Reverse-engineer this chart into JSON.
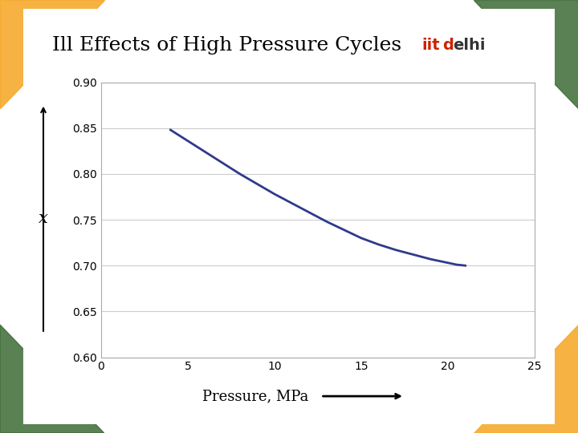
{
  "title": "Ill Effects of High Pressure Cycles",
  "xlabel": "Pressure, MPa",
  "ylabel": "x",
  "bg_color": "#ffffff",
  "line_color": "#2e3a8c",
  "line_width": 2.0,
  "xlim": [
    0,
    25
  ],
  "ylim": [
    0.6,
    0.9
  ],
  "xticks": [
    0,
    5,
    10,
    15,
    20,
    25
  ],
  "yticks": [
    0.6,
    0.65,
    0.7,
    0.75,
    0.8,
    0.85,
    0.9
  ],
  "curve_x": [
    4.0,
    5.0,
    6.0,
    7.0,
    8.0,
    9.0,
    10.0,
    11.0,
    12.0,
    13.0,
    14.0,
    15.0,
    16.0,
    17.0,
    18.0,
    19.0,
    20.5,
    21.0
  ],
  "curve_y": [
    0.848,
    0.836,
    0.824,
    0.812,
    0.8,
    0.789,
    0.778,
    0.768,
    0.758,
    0.748,
    0.739,
    0.73,
    0.723,
    0.717,
    0.712,
    0.707,
    0.701,
    0.7
  ],
  "title_fontsize": 18,
  "tick_fontsize": 10,
  "xlabel_fontsize": 13,
  "ylabel_fontsize": 15,
  "header_bar_color": "#3a3aaa",
  "arrow_color": "#000000",
  "orange_color": "#f5a623",
  "green_color": "#3d6b35"
}
